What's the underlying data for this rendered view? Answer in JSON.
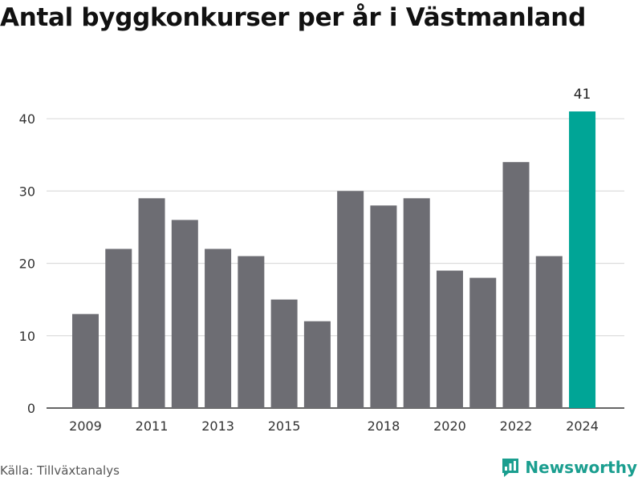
{
  "colors": {
    "bar": "#6d6d73",
    "highlight": "#00a596",
    "grid": "#dcdcdc",
    "axis": "#333333",
    "brand": "#1a9e8f"
  },
  "footer": {
    "source": "Källa: Tillväxtanalys",
    "brand": "Newsworthy",
    "brand_icon": "newsworthy-logo-icon"
  },
  "chart_data": {
    "type": "bar",
    "title": "Antal byggkonkurser per år i Västmanland",
    "xlabel": "",
    "ylabel": "",
    "categories": [
      "2009",
      "2010",
      "2011",
      "2012",
      "2013",
      "2014",
      "2015",
      "2016",
      "2017",
      "2018",
      "2019",
      "2020",
      "2021",
      "2022",
      "2023",
      "2024"
    ],
    "values": [
      13,
      22,
      29,
      26,
      22,
      21,
      15,
      12,
      30,
      28,
      29,
      19,
      18,
      34,
      21,
      41
    ],
    "x_tick_labels": [
      "2009",
      "2011",
      "2013",
      "2015",
      "2018",
      "2020",
      "2022",
      "2024"
    ],
    "y_ticks": [
      0,
      10,
      20,
      30,
      40
    ],
    "ylim": [
      0,
      42
    ],
    "highlight_category": "2024",
    "highlight_label": "41",
    "grid": true,
    "legend": "none"
  }
}
